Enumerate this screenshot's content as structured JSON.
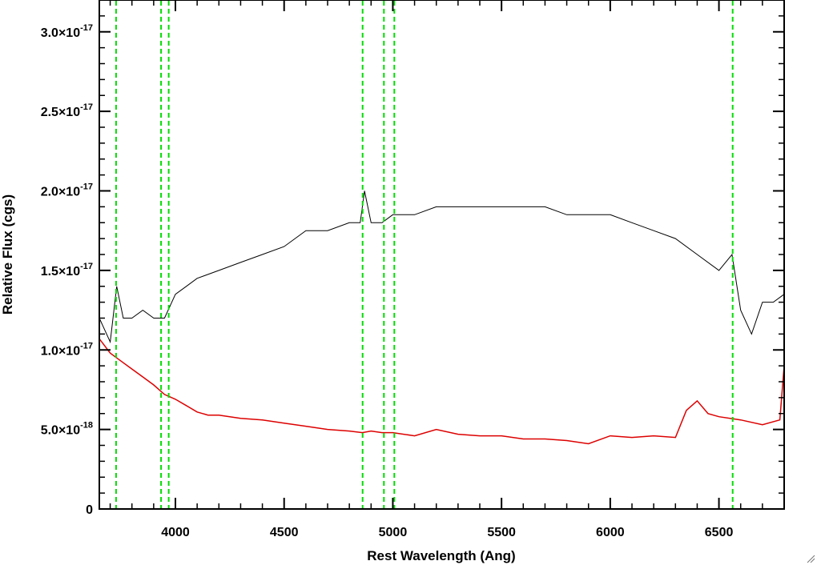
{
  "chart_data": {
    "type": "line",
    "title": "",
    "xlabel": "Rest Wavelength (Ang)",
    "ylabel": "Relative Flux (cgs)",
    "xlim": [
      3650,
      6800
    ],
    "ylim": [
      0,
      3.2e-17
    ],
    "xticks": [
      {
        "value": 4000,
        "label": "4000"
      },
      {
        "value": 4500,
        "label": "4500"
      },
      {
        "value": 5000,
        "label": "5000"
      },
      {
        "value": 5500,
        "label": "5500"
      },
      {
        "value": 6000,
        "label": "6000"
      },
      {
        "value": 6500,
        "label": "6500"
      }
    ],
    "yticks": [
      {
        "value": 0,
        "mantissa": "0",
        "exponent": ""
      },
      {
        "value": 5e-18,
        "mantissa": "5.0×10",
        "exponent": "-18"
      },
      {
        "value": 1e-17,
        "mantissa": "1.0×10",
        "exponent": "-17"
      },
      {
        "value": 1.5e-17,
        "mantissa": "1.5×10",
        "exponent": "-17"
      },
      {
        "value": 2e-17,
        "mantissa": "2.0×10",
        "exponent": "-17"
      },
      {
        "value": 2.5e-17,
        "mantissa": "2.5×10",
        "exponent": "-17"
      },
      {
        "value": 3e-17,
        "mantissa": "3.0×10",
        "exponent": "-17"
      }
    ],
    "grid": false,
    "colors": {
      "spectrum": "#000000",
      "error": "#dd0000",
      "lines": "#00dd00"
    },
    "reference_lines_x": [
      3727,
      3934,
      3969,
      4861,
      4959,
      5007,
      6563
    ],
    "series": [
      {
        "color": "#000000",
        "x": [
          3650,
          3700,
          3730,
          3760,
          3800,
          3850,
          3900,
          3950,
          4000,
          4050,
          4100,
          4200,
          4300,
          4400,
          4500,
          4600,
          4700,
          4800,
          4850,
          4870,
          4900,
          4950,
          5000,
          5100,
          5200,
          5300,
          5400,
          5500,
          5600,
          5700,
          5800,
          5900,
          6000,
          6100,
          6200,
          6300,
          6400,
          6500,
          6560,
          6600,
          6650,
          6700,
          6750,
          6800
        ],
        "y": [
          1.2e-17,
          1.05e-17,
          1.4e-17,
          1.2e-17,
          1.2e-17,
          1.25e-17,
          1.2e-17,
          1.2e-17,
          1.35e-17,
          1.4e-17,
          1.45e-17,
          1.5e-17,
          1.55e-17,
          1.6e-17,
          1.65e-17,
          1.75e-17,
          1.75e-17,
          1.8e-17,
          1.8e-17,
          2e-17,
          1.8e-17,
          1.8e-17,
          1.85e-17,
          1.85e-17,
          1.9e-17,
          1.9e-17,
          1.9e-17,
          1.9e-17,
          1.9e-17,
          1.9e-17,
          1.85e-17,
          1.85e-17,
          1.85e-17,
          1.8e-17,
          1.75e-17,
          1.7e-17,
          1.6e-17,
          1.5e-17,
          1.6e-17,
          1.25e-17,
          1.1e-17,
          1.3e-17,
          1.3e-17,
          1.35e-17
        ]
      },
      {
        "color": "#dd0000",
        "x": [
          3650,
          3700,
          3750,
          3800,
          3850,
          3900,
          3950,
          4000,
          4050,
          4100,
          4150,
          4200,
          4300,
          4400,
          4500,
          4600,
          4700,
          4800,
          4860,
          4900,
          4950,
          5000,
          5100,
          5200,
          5300,
          5400,
          5500,
          5600,
          5700,
          5800,
          5900,
          6000,
          6100,
          6200,
          6300,
          6350,
          6400,
          6450,
          6500,
          6600,
          6700,
          6780,
          6800
        ],
        "y": [
          1.07e-17,
          9.8e-18,
          9.3e-18,
          8.8e-18,
          8.3e-18,
          7.8e-18,
          7.2e-18,
          6.9e-18,
          6.5e-18,
          6.1e-18,
          5.9e-18,
          5.9e-18,
          5.7e-18,
          5.6e-18,
          5.4e-18,
          5.2e-18,
          5e-18,
          4.9e-18,
          4.8e-18,
          4.9e-18,
          4.8e-18,
          4.8e-18,
          4.6e-18,
          5e-18,
          4.7e-18,
          4.6e-18,
          4.6e-18,
          4.4e-18,
          4.4e-18,
          4.3e-18,
          4.1e-18,
          4.6e-18,
          4.5e-18,
          4.6e-18,
          4.5e-18,
          6.2e-18,
          6.8e-18,
          6e-18,
          5.8e-18,
          5.6e-18,
          5.3e-18,
          5.6e-18,
          9e-18
        ]
      }
    ]
  }
}
